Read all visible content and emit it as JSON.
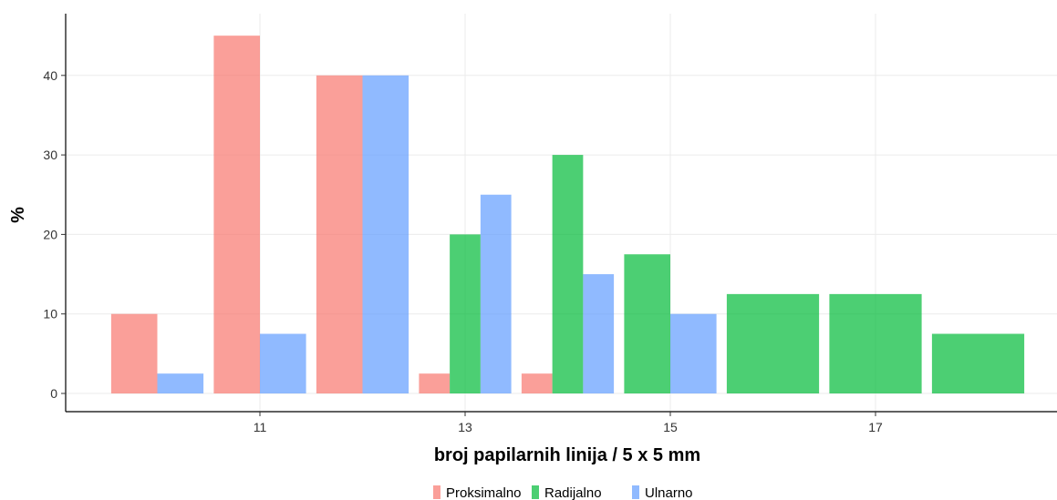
{
  "chart_data": {
    "type": "bar",
    "xlabel": "broj papilarnih linija / 5 x 5 mm",
    "ylabel": "%",
    "x": [
      10,
      11,
      12,
      13,
      14,
      15,
      16,
      17,
      18
    ],
    "x_ticks": [
      11,
      13,
      15,
      17
    ],
    "y_ticks": [
      0,
      10,
      20,
      30,
      40
    ],
    "ylim": [
      0,
      45
    ],
    "grid": true,
    "legend_position": "bottom",
    "series": [
      {
        "name": "Proksimalno",
        "color": "#F8766D",
        "values": [
          10,
          45,
          40,
          2.5,
          2.5,
          null,
          null,
          null,
          null
        ]
      },
      {
        "name": "Radijalno",
        "color": "#00BA38",
        "values": [
          null,
          null,
          null,
          20,
          30,
          17.5,
          12.5,
          12.5,
          7.5
        ]
      },
      {
        "name": "Ulnarno",
        "color": "#619CFF",
        "values": [
          2.5,
          7.5,
          40,
          25,
          15,
          10,
          null,
          null,
          null
        ]
      }
    ]
  }
}
